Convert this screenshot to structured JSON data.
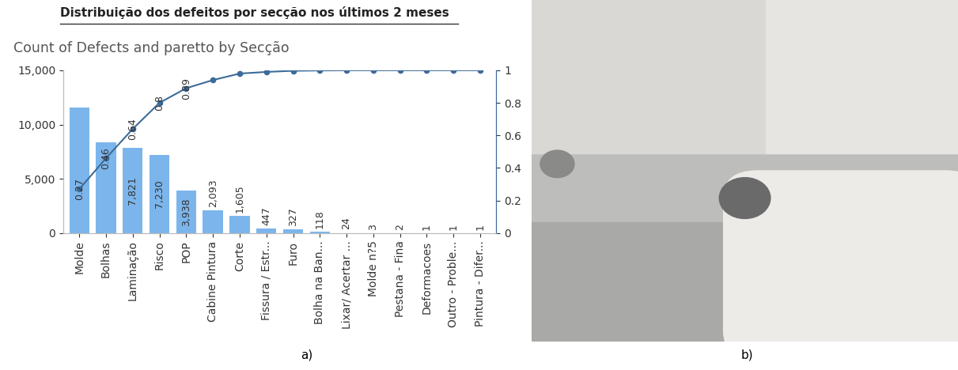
{
  "heading": "Distribuição dos defeitos por secção nos últimos 2 meses",
  "captions": [
    "a)",
    "b)"
  ],
  "chart_data": {
    "type": "bar",
    "title": "Count of Defects and paretto by Secção",
    "categories": [
      "Molde",
      "Bolhas",
      "Laminação",
      "Risco",
      "POP",
      "Cabine Pintura",
      "Corte",
      "Fissura / Estr...",
      "Furo",
      "Bolha na Ban...",
      "Lixar/ Acertar ...",
      "Molde n?5",
      "Pestana - Fina",
      "Deformacoes",
      "Outro - Proble...",
      "Pintura - Difer..."
    ],
    "series": [
      {
        "type": "bar",
        "color": "#7cb5ec",
        "values": [
          11600,
          8400,
          7821,
          7230,
          3938,
          2093,
          1605,
          447,
          327,
          118,
          24,
          3,
          2,
          1,
          1,
          1
        ],
        "value_labels": [
          null,
          null,
          "7,821",
          "7,230",
          "3,938",
          "2,093",
          "1,605",
          "447",
          "327",
          "118",
          "24",
          "3",
          "2",
          "1",
          "1",
          "1"
        ]
      },
      {
        "type": "line",
        "axis": "y2",
        "color": "#3d6c99",
        "marker": "o",
        "values": [
          0.27,
          0.46,
          0.64,
          0.8,
          0.89,
          0.94,
          0.98,
          0.99,
          0.997,
          0.999,
          1,
          1,
          1,
          1,
          1,
          1
        ],
        "value_labels": [
          "0.27",
          "0.46",
          "0.64",
          "0.8",
          "0.89",
          null,
          null,
          null,
          null,
          null,
          null,
          null,
          null,
          null,
          null,
          null
        ]
      }
    ],
    "ylim": [
      0,
      15000
    ],
    "yticks": [
      0,
      {
        "value": 5000,
        "label": "5,000"
      },
      {
        "value": 10000,
        "label": "10,000"
      },
      {
        "value": 15000,
        "label": "15,000"
      }
    ],
    "y2lim": [
      0,
      1
    ],
    "y2ticks": [
      0,
      0.2,
      0.4,
      0.6,
      0.8,
      1
    ],
    "grid": false,
    "data_labels": true
  }
}
